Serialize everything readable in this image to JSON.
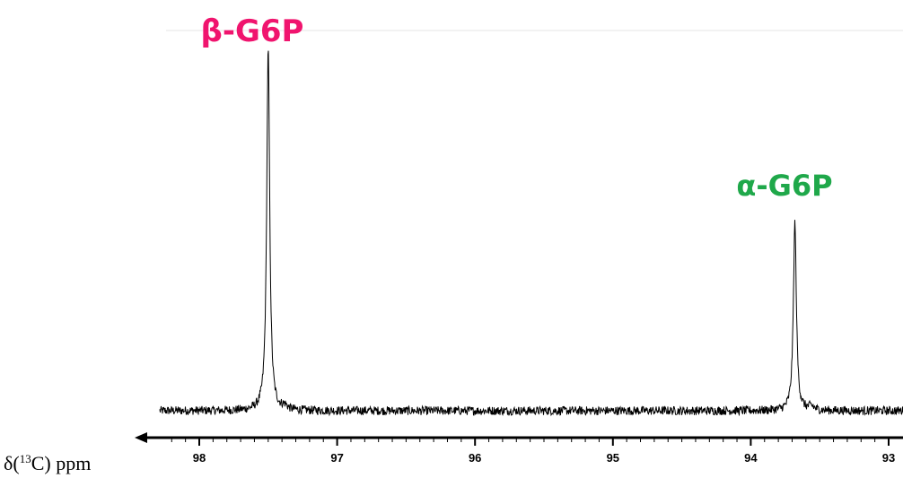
{
  "chart_data": {
    "type": "line",
    "title": "",
    "xlabel_base": "δ(",
    "xlabel_sup": "13",
    "xlabel_rest": "C) ppm",
    "xlim": [
      98.2,
      92.97
    ],
    "ylim": [
      0,
      1
    ],
    "ticks": [
      98,
      97,
      96,
      95,
      94,
      93
    ],
    "tick_labels": [
      "98",
      "97",
      "96",
      "95",
      "94",
      "93"
    ],
    "grid": false,
    "baseline": 0.02,
    "noise_amplitude": 0.012,
    "peaks": [
      {
        "label": "β-G6P",
        "position": 97.5,
        "height": 1.0,
        "color": "#f0146e"
      },
      {
        "label": "α-G6P",
        "position": 93.68,
        "height": 0.53,
        "color": "#1fa84a"
      }
    ]
  }
}
